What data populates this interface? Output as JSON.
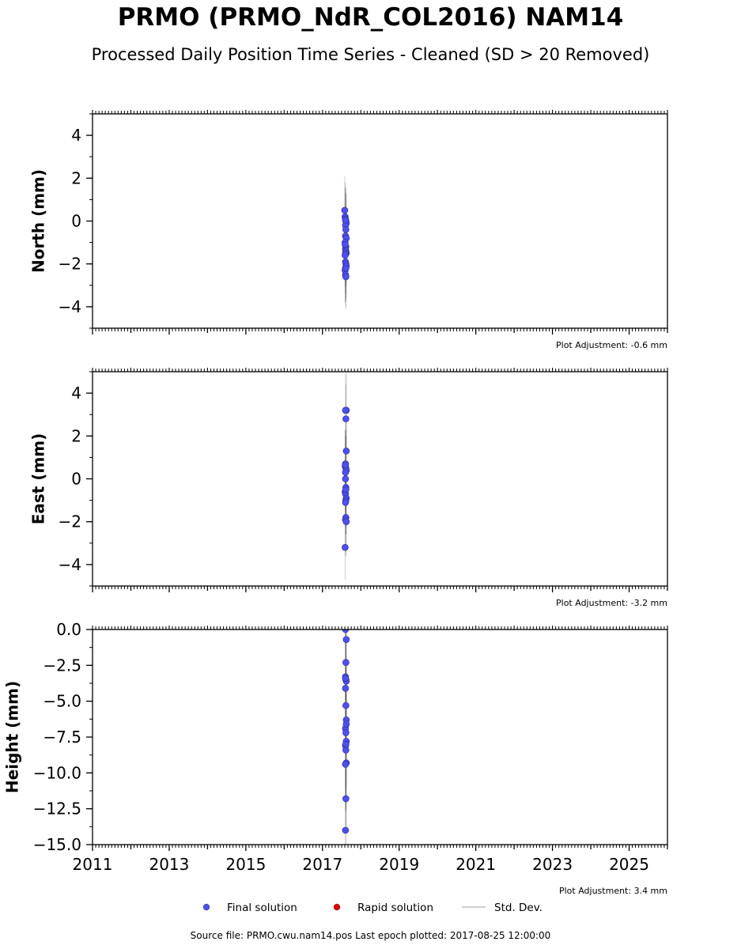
{
  "title": "PRMO (PRMO_NdR_COL2016) NAM14",
  "subtitle": "Processed Daily Position Time Series - Cleaned (SD > 20 Removed)",
  "source_note": "Source file: PRMO.cwu.nam14.pos  Last epoch plotted: 2017-08-25 12:00:00",
  "colors": {
    "final": "#4f4ff0",
    "rapid": "#e00000",
    "stddev": "#b0b0b0"
  },
  "chart_data": [
    {
      "type": "scatter",
      "panel": "north",
      "ylabel": "North (mm)",
      "xlim": [
        2011,
        2026
      ],
      "ylim": [
        -5,
        5
      ],
      "yticks": [
        4,
        2,
        0,
        -2,
        -4
      ],
      "ytick_labels": [
        "4",
        "2",
        "0",
        "−2",
        "−4"
      ],
      "adjustment": "Plot Adjustment: -0.6 mm",
      "series": [
        {
          "name": "Final solution",
          "x": [
            2017.58,
            2017.59,
            2017.6,
            2017.61,
            2017.62,
            2017.6,
            2017.61,
            2017.6,
            2017.62,
            2017.59,
            2017.61,
            2017.6,
            2017.61,
            2017.62,
            2017.6,
            2017.59,
            2017.6,
            2017.61,
            2017.62,
            2017.6,
            2017.59,
            2017.61,
            2017.6,
            2017.61,
            2017.6,
            2017.59
          ],
          "y": [
            0.5,
            0.2,
            0.1,
            0.0,
            -0.1,
            -0.2,
            -0.4,
            -0.7,
            -0.8,
            -1.0,
            -1.2,
            -1.3,
            -1.4,
            -1.5,
            -1.5,
            -1.6,
            -1.9,
            -2.0,
            -2.1,
            -2.2,
            -2.3,
            -2.2,
            -2.5,
            -2.6,
            0.05,
            -1.1
          ]
        },
        {
          "name": "Std. Dev.",
          "sd": [
            1.6,
            1.6,
            1.5,
            1.5,
            1.4,
            1.5,
            1.6,
            1.5,
            1.4,
            1.5,
            1.6,
            1.5,
            1.4,
            1.5,
            1.6,
            1.5,
            1.5,
            1.4,
            1.5,
            1.6,
            1.5,
            1.5,
            1.5,
            1.5,
            1.5,
            1.5
          ]
        }
      ]
    },
    {
      "type": "scatter",
      "panel": "east",
      "ylabel": "East (mm)",
      "xlim": [
        2011,
        2026
      ],
      "ylim": [
        -5,
        5
      ],
      "yticks": [
        4,
        2,
        0,
        -2,
        -4
      ],
      "ytick_labels": [
        "4",
        "2",
        "0",
        "−2",
        "−4"
      ],
      "adjustment": "Plot Adjustment: -3.2 mm",
      "series": [
        {
          "name": "Final solution",
          "x": [
            2017.62,
            2017.6,
            2017.61,
            2017.62,
            2017.6,
            2017.59,
            2017.61,
            2017.62,
            2017.6,
            2017.61,
            2017.59,
            2017.6,
            2017.62,
            2017.61,
            2017.6,
            2017.61,
            2017.6,
            2017.62,
            2017.59,
            2017.6,
            2017.61,
            2017.6
          ],
          "y": [
            3.2,
            3.2,
            2.8,
            1.3,
            0.7,
            0.6,
            0.5,
            0.4,
            0.3,
            -0.4,
            -0.6,
            -0.7,
            -0.9,
            -1.0,
            -1.1,
            -1.8,
            -1.9,
            -2.0,
            -3.2,
            0.0,
            -0.5,
            0.65
          ]
        },
        {
          "name": "Std. Dev.",
          "sd": [
            1.8,
            1.7,
            1.6,
            1.5,
            1.6,
            1.7,
            1.5,
            1.6,
            1.7,
            1.6,
            1.5,
            1.6,
            1.7,
            1.6,
            1.5,
            1.6,
            1.7,
            1.6,
            1.5,
            1.6,
            1.6,
            1.6
          ]
        }
      ]
    },
    {
      "type": "scatter",
      "panel": "height",
      "ylabel": "Height (mm)",
      "xlim": [
        2011,
        2026
      ],
      "ylim": [
        -15,
        0
      ],
      "yticks": [
        0,
        -2.5,
        -5,
        -7.5,
        -10,
        -12.5,
        -15
      ],
      "ytick_labels": [
        "0.0",
        "−2.5",
        "−5.0",
        "−7.5",
        "−10.0",
        "−12.5",
        "−15.0"
      ],
      "xticks": [
        2011,
        2013,
        2015,
        2017,
        2019,
        2021,
        2023,
        2025
      ],
      "xtick_labels": [
        "2011",
        "2013",
        "2015",
        "2017",
        "2019",
        "2021",
        "2023",
        "2025"
      ],
      "adjustment": "Plot Adjustment: 3.4 mm",
      "series": [
        {
          "name": "Final solution",
          "x": [
            2017.6,
            2017.62,
            2017.61,
            2017.6,
            2017.61,
            2017.62,
            2017.6,
            2017.61,
            2017.62,
            2017.6,
            2017.61,
            2017.62,
            2017.6,
            2017.61,
            2017.62,
            2017.6,
            2017.61,
            2017.6,
            2017.62,
            2017.61,
            2017.6
          ],
          "y": [
            0.0,
            -0.7,
            -2.3,
            -3.3,
            -3.5,
            -3.6,
            -4.1,
            -5.3,
            -6.3,
            -6.9,
            -7.2,
            -7.8,
            -8.1,
            -8.4,
            -9.3,
            -9.4,
            -11.8,
            -14.0,
            -6.6,
            -8.0,
            -3.4
          ]
        },
        {
          "name": "Std. Dev.",
          "sd": [
            4.5,
            4.3,
            4.6,
            4.4,
            4.5,
            4.2,
            4.6,
            4.4,
            4.5,
            4.3,
            4.6,
            4.4,
            4.5,
            4.3,
            4.6,
            4.4,
            4.5,
            4.3,
            4.4,
            4.5,
            4.4
          ]
        }
      ]
    }
  ],
  "legend": [
    {
      "label": "Final solution",
      "symbol": "dot",
      "color_key": "final"
    },
    {
      "label": "Rapid solution",
      "symbol": "dot",
      "color_key": "rapid"
    },
    {
      "label": "Std. Dev.",
      "symbol": "line",
      "color_key": "stddev"
    }
  ]
}
